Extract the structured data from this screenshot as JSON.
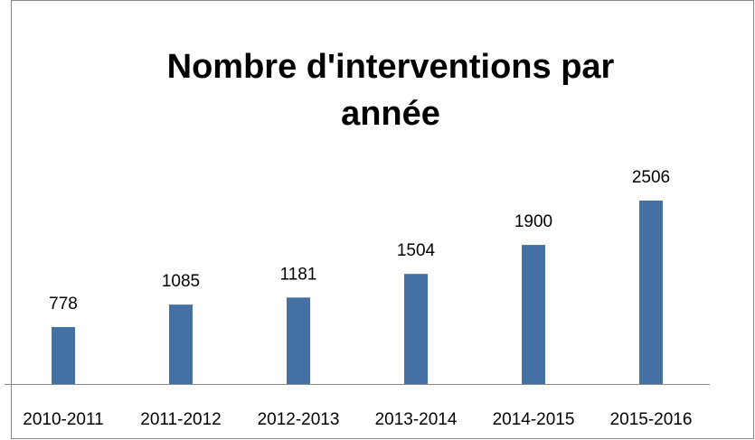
{
  "chart_data": {
    "type": "bar",
    "title": [
      "Nombre d'interventions par",
      "année"
    ],
    "categories": [
      "2010-2011",
      "2011-2012",
      "2012-2013",
      "2013-2014",
      "2014-2015",
      "2015-2016"
    ],
    "values": [
      778,
      1085,
      1181,
      1504,
      1900,
      2506
    ],
    "color": "#4470a4"
  }
}
